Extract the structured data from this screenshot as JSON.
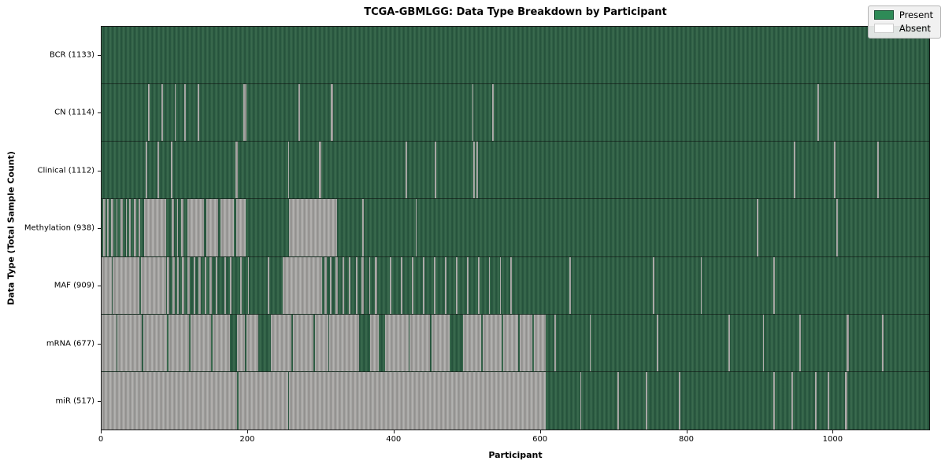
{
  "title": "TCGA-GBMLGG: Data Type Breakdown by Participant",
  "x_axis_label": "Participant",
  "y_axis_label": "Data Type (Total Sample Count)",
  "legend": {
    "present_label": "Present",
    "absent_label": "Absent"
  },
  "colors": {
    "present": "#2e8b57",
    "present_rib_light": "#3c6d50",
    "present_rib_dark": "#23503a",
    "absent": "#ffffff",
    "absent_rib_light": "#b7b6b4",
    "absent_rib_dark": "#8d8c8a",
    "legend_bg": "#f0f0f0",
    "border": "#1a1a1a"
  },
  "chart_data": {
    "type": "heatmap",
    "title": "TCGA-GBMLGG: Data Type Breakdown by Participant",
    "xlabel": "Participant",
    "ylabel": "Data Type (Total Sample Count)",
    "x_domain": [
      0,
      1133
    ],
    "x_ticks": [
      0,
      200,
      400,
      600,
      800,
      1000
    ],
    "legend_entries": [
      {
        "label": "Present",
        "state": "present"
      },
      {
        "label": "Absent",
        "state": "absent"
      }
    ],
    "grid": false,
    "legend_position": "upper right",
    "rows": [
      {
        "name": "BCR",
        "label": "BCR (1133)",
        "count": 1133,
        "absent_ranges": []
      },
      {
        "name": "CN",
        "label": "CN (1114)",
        "count": 1114,
        "absent_ranges": [
          [
            64,
            66
          ],
          [
            82,
            84
          ],
          [
            100,
            101
          ],
          [
            113,
            115
          ],
          [
            132,
            134
          ],
          [
            194,
            198
          ],
          [
            270,
            272
          ],
          [
            314,
            317
          ],
          [
            508,
            509
          ],
          [
            535,
            537
          ],
          [
            980,
            982
          ]
        ]
      },
      {
        "name": "Clinical",
        "label": "Clinical (1112)",
        "count": 1112,
        "absent_ranges": [
          [
            60,
            62
          ],
          [
            77,
            79
          ],
          [
            95,
            97
          ],
          [
            183,
            187
          ],
          [
            255,
            257
          ],
          [
            297,
            301
          ],
          [
            416,
            418
          ],
          [
            456,
            458
          ],
          [
            509,
            511
          ],
          [
            513,
            515
          ],
          [
            948,
            950
          ],
          [
            1003,
            1005
          ],
          [
            1062,
            1064
          ]
        ]
      },
      {
        "name": "Methylation",
        "label": "Methylation (938)",
        "count": 938,
        "absent_ranges": [
          [
            2,
            5
          ],
          [
            8,
            10
          ],
          [
            13,
            16
          ],
          [
            20,
            22
          ],
          [
            26,
            29
          ],
          [
            33,
            35
          ],
          [
            38,
            40
          ],
          [
            44,
            47
          ],
          [
            51,
            53
          ],
          [
            58,
            88
          ],
          [
            96,
            99
          ],
          [
            103,
            105
          ],
          [
            109,
            112
          ],
          [
            117,
            140
          ],
          [
            143,
            160
          ],
          [
            163,
            181
          ],
          [
            184,
            197
          ],
          [
            257,
            322
          ],
          [
            357,
            359
          ],
          [
            430,
            431
          ],
          [
            897,
            899
          ],
          [
            1006,
            1008
          ]
        ]
      },
      {
        "name": "MAF",
        "label": "MAF (909)",
        "count": 909,
        "absent_ranges": [
          [
            0,
            14
          ],
          [
            15,
            52
          ],
          [
            54,
            88
          ],
          [
            90,
            93
          ],
          [
            97,
            100
          ],
          [
            104,
            106
          ],
          [
            110,
            113
          ],
          [
            118,
            121
          ],
          [
            126,
            128
          ],
          [
            133,
            136
          ],
          [
            141,
            143
          ],
          [
            148,
            151
          ],
          [
            156,
            159
          ],
          [
            168,
            170
          ],
          [
            176,
            178
          ],
          [
            190,
            192
          ],
          [
            200,
            202
          ],
          [
            228,
            230
          ],
          [
            248,
            302
          ],
          [
            305,
            308
          ],
          [
            313,
            315
          ],
          [
            320,
            323
          ],
          [
            330,
            332
          ],
          [
            338,
            341
          ],
          [
            348,
            350
          ],
          [
            356,
            359
          ],
          [
            366,
            368
          ],
          [
            374,
            377
          ],
          [
            395,
            397
          ],
          [
            410,
            412
          ],
          [
            425,
            427
          ],
          [
            440,
            442
          ],
          [
            455,
            457
          ],
          [
            470,
            472
          ],
          [
            485,
            487
          ],
          [
            500,
            502
          ],
          [
            515,
            517
          ],
          [
            530,
            532
          ],
          [
            545,
            547
          ],
          [
            560,
            562
          ],
          [
            640,
            642
          ],
          [
            755,
            757
          ],
          [
            820,
            822
          ],
          [
            920,
            922
          ]
        ]
      },
      {
        "name": "mRNA",
        "label": "mRNA (677)",
        "count": 677,
        "absent_ranges": [
          [
            0,
            20
          ],
          [
            22,
            55
          ],
          [
            57,
            90
          ],
          [
            92,
            120
          ],
          [
            122,
            150
          ],
          [
            152,
            176
          ],
          [
            185,
            196
          ],
          [
            198,
            215
          ],
          [
            232,
            260
          ],
          [
            262,
            290
          ],
          [
            292,
            310
          ],
          [
            312,
            352
          ],
          [
            368,
            380
          ],
          [
            388,
            420
          ],
          [
            422,
            450
          ],
          [
            452,
            476
          ],
          [
            495,
            520
          ],
          [
            522,
            548
          ],
          [
            550,
            570
          ],
          [
            572,
            590
          ],
          [
            592,
            608
          ],
          [
            620,
            622
          ],
          [
            668,
            670
          ],
          [
            760,
            762
          ],
          [
            858,
            860
          ],
          [
            905,
            907
          ],
          [
            955,
            957
          ],
          [
            1020,
            1023
          ],
          [
            1068,
            1070
          ]
        ]
      },
      {
        "name": "miR",
        "label": "miR (517)",
        "count": 517,
        "absent_ranges": [
          [
            0,
            185
          ],
          [
            188,
            255
          ],
          [
            257,
            608
          ],
          [
            655,
            657
          ],
          [
            706,
            708
          ],
          [
            745,
            747
          ],
          [
            790,
            792
          ],
          [
            920,
            922
          ],
          [
            944,
            946
          ],
          [
            977,
            979
          ],
          [
            994,
            996
          ],
          [
            1018,
            1021
          ]
        ]
      }
    ]
  }
}
